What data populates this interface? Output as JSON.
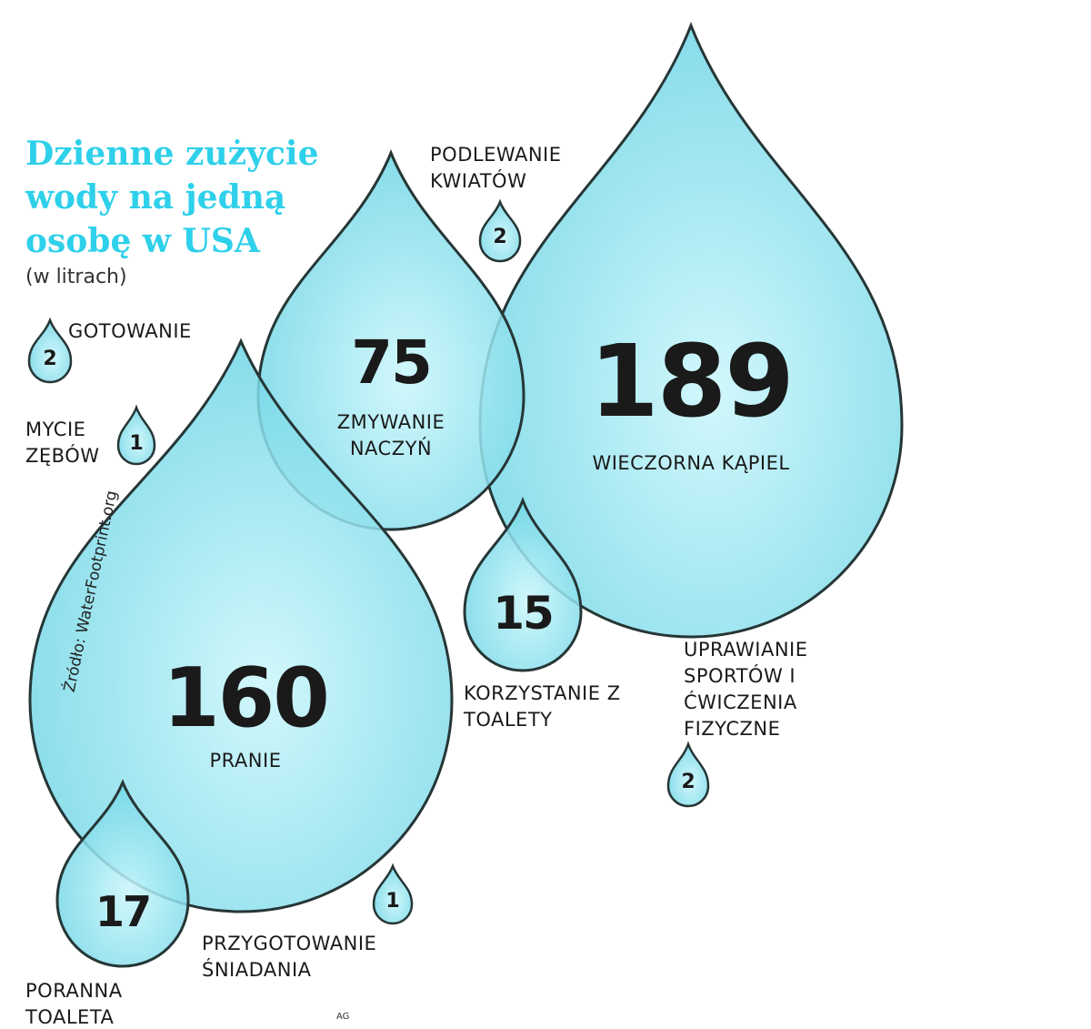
{
  "header": {
    "title": "Dzienne zużycie wody na jedną osobę w USA",
    "subtitle": "(w litrach)"
  },
  "items": [
    {
      "label": "WIECZORNA KĄPIEL",
      "value": "189"
    },
    {
      "label": "PRANIE",
      "value": "160"
    },
    {
      "label": "ZMYWANIE NACZYŃ",
      "value": "75"
    },
    {
      "label": "PORANNA TOALETA",
      "value": "17"
    },
    {
      "label": "KORZYSTANIE Z TOALETY",
      "value": "15"
    },
    {
      "label": "PODLEWANIE KWIATÓW",
      "value": "2"
    },
    {
      "label": "GOTOWANIE",
      "value": "2"
    },
    {
      "label": "MYCIE ZĘBÓW",
      "value": "1"
    },
    {
      "label": "PRZYGOTOWANIE ŚNIADANIA",
      "value": "1"
    },
    {
      "label": "UPRAWIANIE SPORTÓW I ĆWICZENIA FIZYCZNE",
      "value": "2"
    }
  ],
  "footer": {
    "source": "Źródło: WaterFootprint.org",
    "credit": "AG"
  }
}
